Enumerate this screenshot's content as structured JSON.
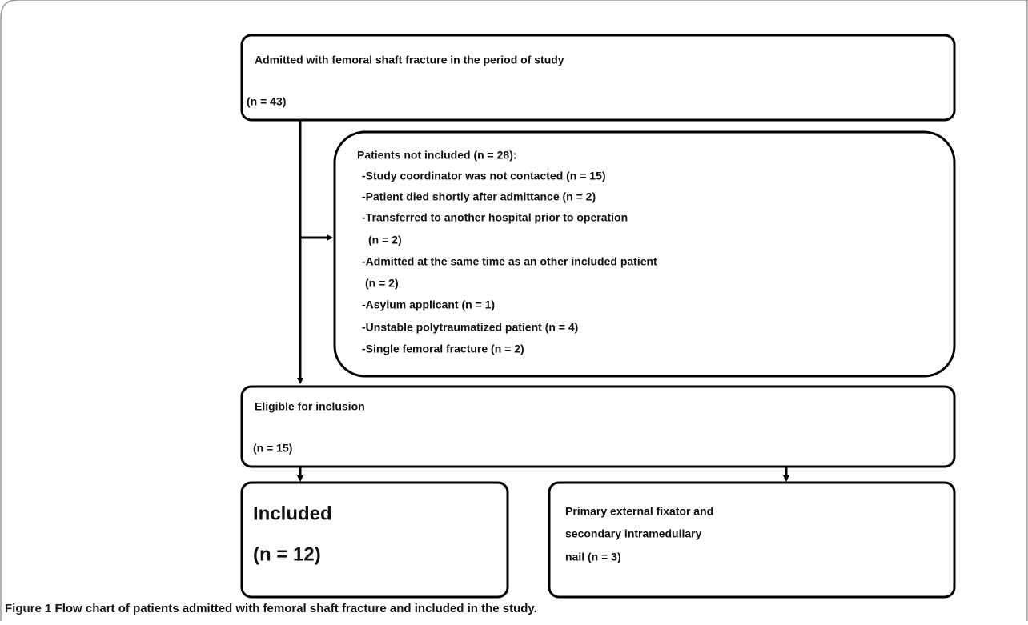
{
  "nodes": [
    {
      "lines": [
        "Admitted with femoral shaft fracture in the period of study",
        "(n = 43)"
      ]
    },
    {
      "lines": [
        "Patients not included (n = 28):",
        "-Study coordinator was not contacted (n = 15)",
        "-Patient died shortly after admittance (n = 2)",
        "-Transferred to another hospital prior to operation",
        "(n = 2)",
        "-Admitted at the same time as an other included patient",
        "(n = 2)",
        "-Asylum applicant (n = 1)",
        "-Unstable polytraumatized patient (n = 4)",
        "-Single femoral fracture (n = 2)"
      ]
    },
    {
      "lines": [
        "Eligible for inclusion",
        "(n = 15)"
      ]
    },
    {
      "lines": [
        "Included",
        "(n = 12)"
      ]
    },
    {
      "lines": [
        "Primary external fixator and",
        "secondary intramedullary",
        "nail (n = 3)"
      ]
    }
  ],
  "caption": {
    "label": "Figure 1",
    "text": "Flow chart of patients admitted with femoral shaft fracture and included in the study."
  }
}
